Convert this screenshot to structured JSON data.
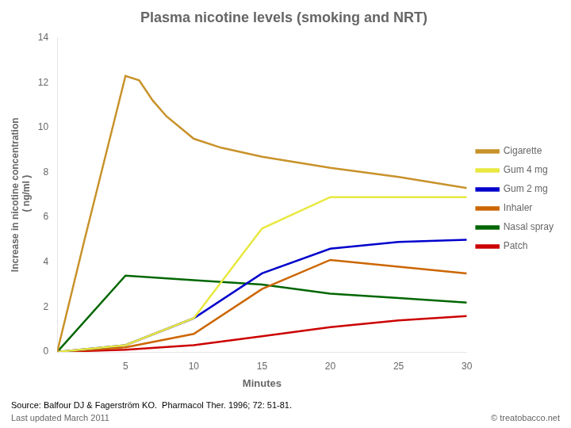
{
  "chart_data": {
    "type": "line",
    "title": "Plasma nicotine levels (smoking and NRT)",
    "x_label": "Minutes",
    "y_label": [
      "Increase in nicotine concentration",
      " ( ng/ml )"
    ],
    "annotations": [
      "Source: Balfour DJ & Fagerström KO.  Pharmacol Ther. 1996; 72: 51-81.",
      "Last updated March 2011",
      "© treatobacco.net"
    ],
    "xlim": [
      0,
      30
    ],
    "xticks": [
      5,
      10,
      15,
      20,
      25,
      30
    ],
    "ylim": [
      0,
      14
    ],
    "yticks": [
      0,
      2,
      4,
      6,
      8,
      10,
      12,
      14
    ],
    "grid": false,
    "legend": "right",
    "marker": "none",
    "series": [
      {
        "name": "Cigarette",
        "color": "#c8922a",
        "x": [
          0,
          2,
          5,
          6,
          7,
          8,
          10,
          12,
          15,
          20,
          25,
          30
        ],
        "values": [
          0,
          5.0,
          12.3,
          12.1,
          11.2,
          10.5,
          9.5,
          9.1,
          8.7,
          8.2,
          7.8,
          7.3
        ]
      },
      {
        "name": "Gum 4 mg",
        "color": "#e8e840",
        "x": [
          0,
          5,
          10,
          15,
          20,
          25,
          30
        ],
        "values": [
          0,
          0.3,
          1.5,
          5.5,
          6.9,
          6.9,
          6.9
        ]
      },
      {
        "name": "Gum 2 mg",
        "color": "#0000cc",
        "x": [
          0,
          5,
          10,
          15,
          20,
          25,
          30
        ],
        "values": [
          0,
          0.3,
          1.5,
          3.5,
          4.6,
          4.9,
          5.0
        ]
      },
      {
        "name": "Inhaler",
        "color": "#cc6600",
        "x": [
          0,
          5,
          10,
          15,
          20,
          25,
          30
        ],
        "values": [
          0,
          0.2,
          0.8,
          2.8,
          4.1,
          3.8,
          3.5
        ]
      },
      {
        "name": "Nasal spray",
        "color": "#006600",
        "x": [
          0,
          5,
          10,
          15,
          20,
          25,
          30
        ],
        "values": [
          0,
          3.4,
          3.2,
          3.0,
          2.6,
          2.4,
          2.2
        ]
      },
      {
        "name": "Patch",
        "color": "#cc0000",
        "x": [
          0,
          5,
          10,
          15,
          20,
          25,
          30
        ],
        "values": [
          0,
          0.1,
          0.3,
          0.7,
          1.1,
          1.4,
          1.6
        ]
      }
    ]
  }
}
